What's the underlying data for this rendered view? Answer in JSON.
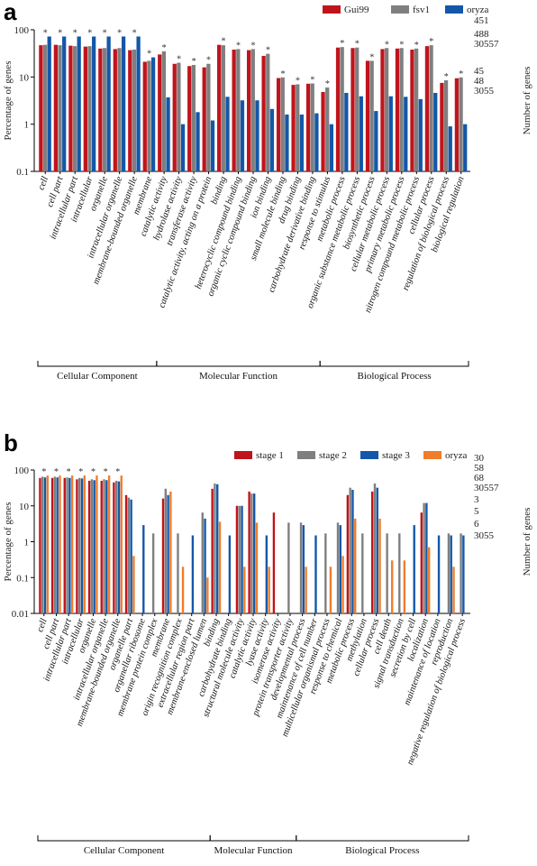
{
  "chart_data": [
    {
      "panel": "a",
      "type": "bar",
      "ylabel": "Percentage of genes",
      "y2label": "Number of genes",
      "yscale": "log",
      "ylim": [
        0.1,
        100
      ],
      "ytick_labels": [
        "0.1",
        "1",
        "10",
        "100"
      ],
      "right_labels": [
        "451",
        "488",
        "30557",
        "45",
        "48",
        "3055"
      ],
      "categories": [
        "cell",
        "cell part",
        "intracellular part",
        "intracellular",
        "organelle",
        "intracellular organelle",
        "membrane-bounded organelle",
        "membrane",
        "catalytic activity",
        "hydrolase activity",
        "transferase activity",
        "catalytic activity, acting on a protein",
        "binding",
        "heterocyclic compound binding",
        "organic cyclic compound binding",
        "ion binding",
        "small molecule binding",
        "drug binding",
        "carbohydrate derivative binding",
        "response to stimulus",
        "metabolic process",
        "organic substance metabolic process",
        "biosynthetic process",
        "cellular metabolic process",
        "primary metabolic process",
        "nitrogen compound metabolic process",
        "cellular process",
        "regulation of biological process",
        "biological regulation"
      ],
      "series": [
        {
          "name": "Gui99",
          "color": "#c0141c",
          "values": [
            47,
            48,
            46,
            44,
            40,
            39,
            37,
            21,
            30,
            19,
            17,
            16,
            48,
            38,
            37,
            28,
            9.5,
            6.8,
            7.2,
            4.8,
            42,
            41,
            22,
            39,
            40,
            38,
            45,
            7.5,
            9.4
          ]
        },
        {
          "name": "fsv1",
          "color": "#7f7f7f",
          "values": [
            48,
            47,
            45,
            45,
            41,
            41,
            38,
            22,
            35,
            20,
            18,
            19,
            47,
            39,
            39,
            31,
            9.8,
            7.0,
            7.3,
            6.0,
            43,
            42,
            22,
            41,
            41,
            40,
            47,
            8.5,
            9.8
          ]
        },
        {
          "name": "oryza",
          "color": "#1457a8",
          "values": [
            72,
            72,
            72,
            72,
            72,
            72,
            72,
            26,
            3.7,
            1.0,
            1.8,
            1.2,
            3.8,
            3.2,
            3.2,
            2.1,
            1.6,
            1.6,
            1.7,
            1.0,
            4.6,
            3.9,
            1.9,
            3.9,
            3.8,
            3.4,
            4.6,
            0.9,
            1.0
          ]
        }
      ],
      "stars": [
        0,
        1,
        2,
        3,
        4,
        5,
        6,
        7,
        8,
        9,
        10,
        11,
        12,
        13,
        14,
        15,
        16,
        17,
        18,
        19,
        20,
        21,
        22,
        23,
        24,
        25,
        26,
        27,
        28
      ],
      "groups": [
        {
          "label": "Cellular Component",
          "from": 0,
          "to": 7
        },
        {
          "label": "Molecular Function",
          "from": 8,
          "to": 18
        },
        {
          "label": "Biological Process",
          "from": 19,
          "to": 28
        }
      ]
    },
    {
      "panel": "b",
      "type": "bar",
      "ylabel": "Percentage of genes",
      "y2label": "Number of genes",
      "yscale": "log",
      "ylim": [
        0.01,
        100
      ],
      "ytick_labels": [
        "0.01",
        "0.1",
        "1",
        "10",
        "100"
      ],
      "right_labels": [
        "30",
        "58",
        "68",
        "30557",
        "3",
        "5",
        "6",
        "3055"
      ],
      "categories": [
        "cell",
        "cell part",
        "intracellular part",
        "intracellular",
        "organelle",
        "intracellular organelle",
        "membrane-bounded organelle",
        "organelle part",
        "organellar ribosome",
        "membrane protein complex",
        "membrane",
        "origin recognition complex",
        "extracellular region part",
        "membrane-enclosed lumen",
        "binding",
        "carbohydrate binding",
        "structural molecule activity",
        "catalytic activity",
        "lyase activity",
        "isomerase activity",
        "protein transporter activity",
        "developmental process",
        "maintenance of cell number",
        "multicellular organismal process",
        "response to chemical",
        "metabolic process",
        "methylation",
        "cellular process",
        "cell death",
        "signal transduction",
        "secretion by cell",
        "localization",
        "maintenance of location",
        "reproduction",
        "negative regulation of biological process"
      ],
      "series": [
        {
          "name": "stage 1",
          "color": "#c0141c",
          "values": [
            60,
            60,
            60,
            55,
            50,
            50,
            45,
            20,
            null,
            null,
            16,
            null,
            null,
            null,
            30,
            null,
            10,
            25,
            null,
            6.5,
            null,
            null,
            null,
            null,
            null,
            20,
            null,
            25,
            null,
            null,
            null,
            6.5,
            null,
            null,
            null
          ]
        },
        {
          "name": "stage 2",
          "color": "#7f7f7f",
          "values": [
            65,
            65,
            62,
            60,
            55,
            55,
            50,
            17,
            null,
            1.7,
            30,
            1.7,
            null,
            6.5,
            42,
            null,
            10,
            22,
            null,
            null,
            3.4,
            3.4,
            null,
            1.7,
            3.4,
            32,
            1.7,
            42,
            1.7,
            1.7,
            null,
            12,
            null,
            1.7,
            1.7
          ]
        },
        {
          "name": "stage 3",
          "color": "#1457a8",
          "values": [
            62,
            62,
            60,
            58,
            52,
            52,
            48,
            15,
            2.9,
            null,
            20,
            null,
            1.5,
            4.4,
            40,
            1.5,
            10,
            22,
            1.5,
            null,
            null,
            2.9,
            1.5,
            null,
            2.9,
            28,
            null,
            32,
            null,
            null,
            2.9,
            12,
            1.5,
            1.5,
            1.5
          ]
        },
        {
          "name": "oryza",
          "color": "#ef7d2c",
          "values": [
            70,
            70,
            70,
            70,
            70,
            70,
            70,
            0.4,
            null,
            null,
            25,
            0.2,
            null,
            0.1,
            3.6,
            null,
            0.2,
            3.4,
            0.2,
            null,
            null,
            0.2,
            null,
            0.2,
            0.4,
            4.4,
            null,
            4.4,
            0.3,
            0.3,
            null,
            0.7,
            null,
            0.2,
            null
          ]
        }
      ],
      "stars": [
        0,
        1,
        2,
        3,
        4,
        5,
        6
      ],
      "groups": [
        {
          "label": "Cellular Component",
          "from": 0,
          "to": 13
        },
        {
          "label": "Molecular Function",
          "from": 14,
          "to": 20
        },
        {
          "label": "Biological Process",
          "from": 21,
          "to": 34
        }
      ]
    }
  ]
}
